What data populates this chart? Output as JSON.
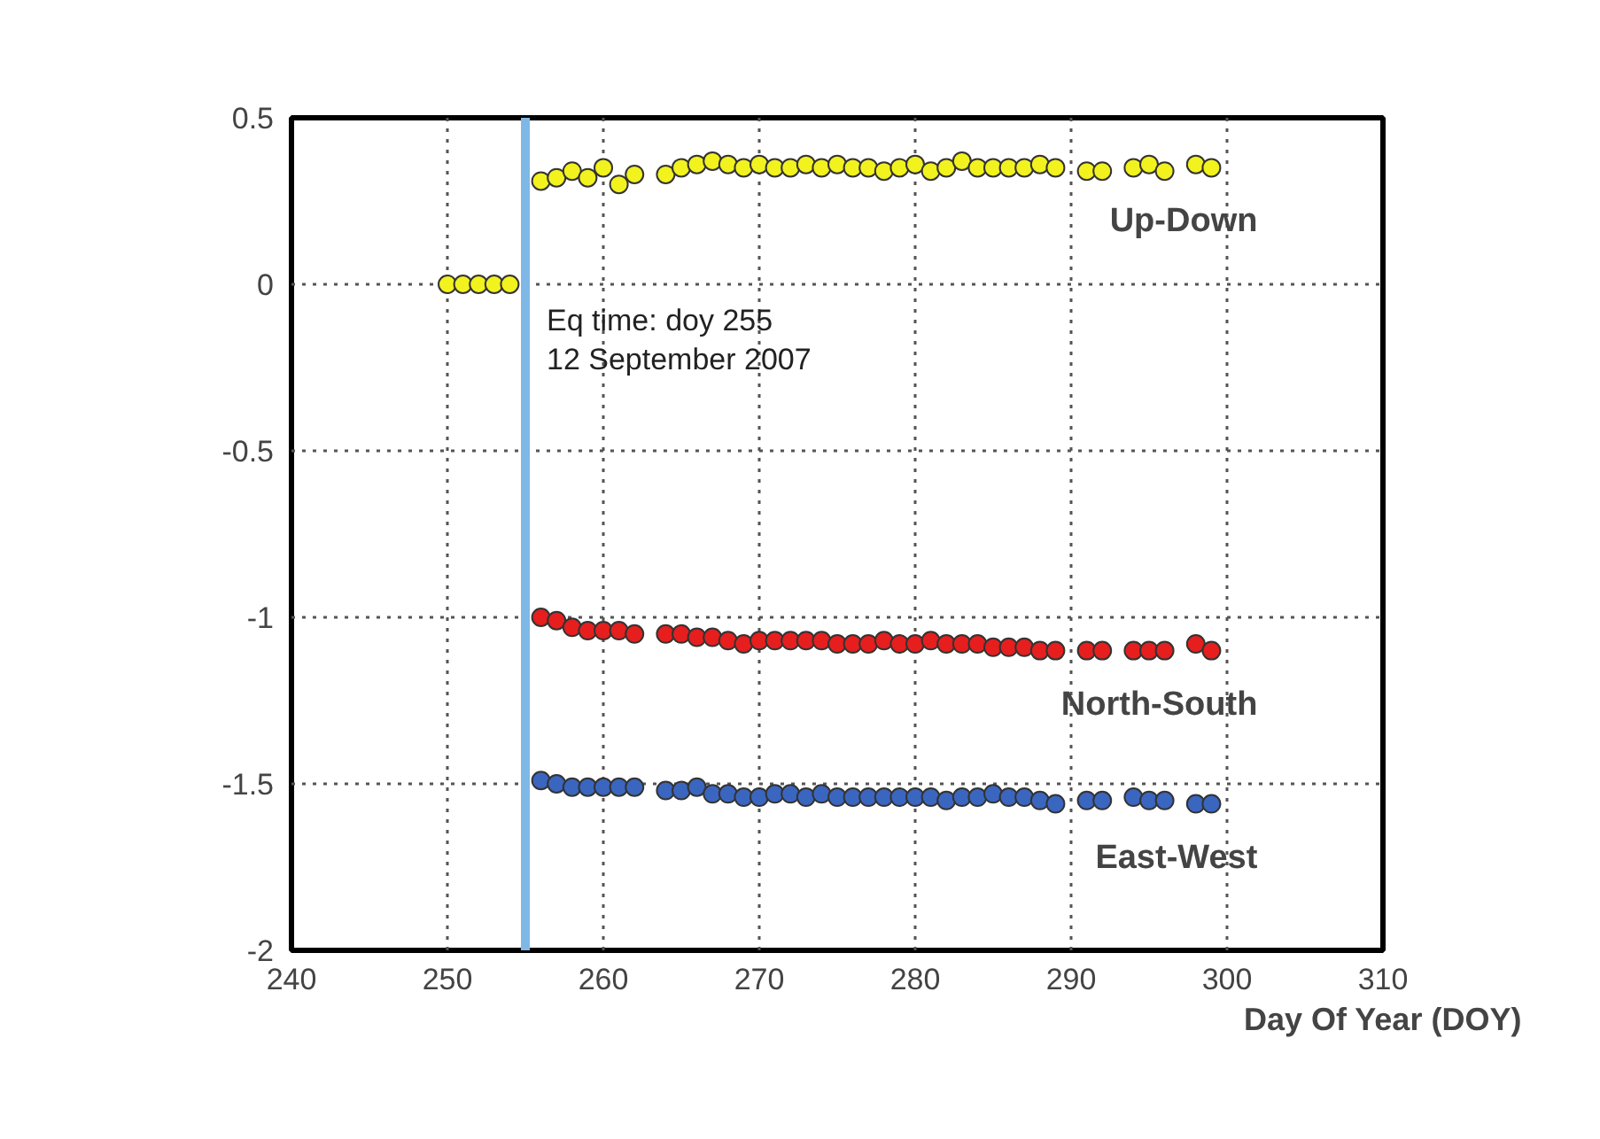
{
  "chart_data": {
    "type": "scatter",
    "xlabel": "Day Of Year (DOY)",
    "xlim": [
      240,
      310
    ],
    "xticks": [
      240,
      250,
      260,
      270,
      280,
      290,
      300,
      310
    ],
    "ylim": [
      -2,
      0.5
    ],
    "yticks": [
      0.5,
      0,
      -0.5,
      -1,
      -1.5,
      -2
    ],
    "grid": true,
    "marker": "circle",
    "series": [
      {
        "name": "Up-Down",
        "color": "#f2f21e",
        "x": [
          250,
          251,
          252,
          253,
          254,
          256,
          257,
          258,
          259,
          260,
          261,
          262,
          264,
          265,
          266,
          267,
          268,
          269,
          270,
          271,
          272,
          273,
          274,
          275,
          276,
          277,
          278,
          279,
          280,
          281,
          282,
          283,
          284,
          285,
          286,
          287,
          288,
          289,
          291,
          292,
          294,
          295,
          296,
          298,
          299
        ],
        "values": [
          0,
          0,
          0,
          0,
          0,
          0.31,
          0.32,
          0.34,
          0.32,
          0.35,
          0.3,
          0.33,
          0.33,
          0.35,
          0.36,
          0.37,
          0.36,
          0.35,
          0.36,
          0.35,
          0.35,
          0.36,
          0.35,
          0.36,
          0.35,
          0.35,
          0.34,
          0.35,
          0.36,
          0.34,
          0.35,
          0.37,
          0.35,
          0.35,
          0.35,
          0.35,
          0.36,
          0.35,
          0.34,
          0.34,
          0.35,
          0.36,
          0.34,
          0.36,
          0.35
        ]
      },
      {
        "name": "North-South",
        "color": "#e61e1e",
        "x": [
          256,
          257,
          258,
          259,
          260,
          261,
          262,
          264,
          265,
          266,
          267,
          268,
          269,
          270,
          271,
          272,
          273,
          274,
          275,
          276,
          277,
          278,
          279,
          280,
          281,
          282,
          283,
          284,
          285,
          286,
          287,
          288,
          289,
          291,
          292,
          294,
          295,
          296,
          298,
          299
        ],
        "values": [
          -1.0,
          -1.01,
          -1.03,
          -1.04,
          -1.04,
          -1.04,
          -1.05,
          -1.05,
          -1.05,
          -1.06,
          -1.06,
          -1.07,
          -1.08,
          -1.07,
          -1.07,
          -1.07,
          -1.07,
          -1.07,
          -1.08,
          -1.08,
          -1.08,
          -1.07,
          -1.08,
          -1.08,
          -1.07,
          -1.08,
          -1.08,
          -1.08,
          -1.09,
          -1.09,
          -1.09,
          -1.1,
          -1.1,
          -1.1,
          -1.1,
          -1.1,
          -1.1,
          -1.1,
          -1.08,
          -1.1
        ]
      },
      {
        "name": "East-West",
        "color": "#3a66c0",
        "x": [
          256,
          257,
          258,
          259,
          260,
          261,
          262,
          264,
          265,
          266,
          267,
          268,
          269,
          270,
          271,
          272,
          273,
          274,
          275,
          276,
          277,
          278,
          279,
          280,
          281,
          282,
          283,
          284,
          285,
          286,
          287,
          288,
          289,
          291,
          292,
          294,
          295,
          296,
          298,
          299
        ],
        "values": [
          -1.49,
          -1.5,
          -1.51,
          -1.51,
          -1.51,
          -1.51,
          -1.51,
          -1.52,
          -1.52,
          -1.51,
          -1.53,
          -1.53,
          -1.54,
          -1.54,
          -1.53,
          -1.53,
          -1.54,
          -1.53,
          -1.54,
          -1.54,
          -1.54,
          -1.54,
          -1.54,
          -1.54,
          -1.54,
          -1.55,
          -1.54,
          -1.54,
          -1.53,
          -1.54,
          -1.54,
          -1.55,
          -1.56,
          -1.55,
          -1.55,
          -1.54,
          -1.55,
          -1.55,
          -1.56,
          -1.56
        ]
      }
    ],
    "ref_lines": [
      {
        "axis": "x",
        "value": 255,
        "label": "Eq time: doy 255\n12 September 2007",
        "color": "#7fb8e6"
      }
    ]
  }
}
